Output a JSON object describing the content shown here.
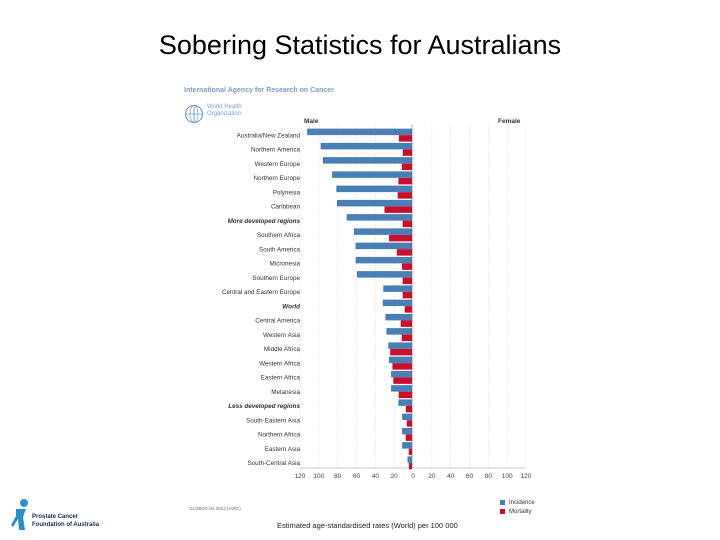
{
  "slide": {
    "title": "Sobering Statistics for Australians"
  },
  "header": {
    "agency": "International Agency for Research on Cancer",
    "who_line1": "World Health",
    "who_line2": "Organization"
  },
  "chart_data": {
    "type": "bar",
    "orientation": "horizontal-mirrored",
    "left_panel_label": "Male",
    "right_panel_label": "Female",
    "categories": [
      "Australia/New Zealand",
      "Northern America",
      "Western Europe",
      "Northern Europe",
      "Polynesia",
      "Caribbean",
      "More developed regions",
      "Southern Africa",
      "South America",
      "Micronesia",
      "Southern Europe",
      "Central and Eastern Europe",
      "World",
      "Central America",
      "Western Asia",
      "Middle Africa",
      "Western Africa",
      "Eastern Africa",
      "Melanesia",
      "Less developed regions",
      "South-Eastern Asia",
      "Northern Africa",
      "Eastern Asia",
      "South-Central Asia"
    ],
    "bold_categories": [
      "More developed regions",
      "World",
      "Less developed regions"
    ],
    "series": [
      {
        "name": "Incidence",
        "color": "#4a7fb5",
        "values": [
          111.6,
          97.2,
          94.9,
          85.0,
          80.5,
          79.8,
          69.5,
          61.8,
          60.1,
          60.0,
          58.6,
          30.6,
          31.1,
          28.3,
          27.2,
          25.2,
          24.5,
          22.3,
          22.3,
          14.5,
          10.5,
          10.6,
          10.5,
          4.8
        ]
      },
      {
        "name": "Mortality",
        "color": "#c8102e",
        "values": [
          14.0,
          9.8,
          10.8,
          14.5,
          15.3,
          29.3,
          10.0,
          24.4,
          16.2,
          10.6,
          10.0,
          10.0,
          7.8,
          12.0,
          11.0,
          23.2,
          20.9,
          19.9,
          14.2,
          6.6,
          5.6,
          6.7,
          3.5,
          3.3
        ]
      }
    ],
    "x_ticks": [
      "120",
      "100",
      "80",
      "60",
      "40",
      "20",
      "0",
      "20",
      "40",
      "60",
      "80",
      "100",
      "120"
    ],
    "x_range_left": [
      0,
      120
    ],
    "x_range_right": [
      0,
      120
    ],
    "xlabel": "Estimated age-standardised rates (World) per 100 000",
    "source": "GLOBOCAN 2012 (IARC)"
  },
  "footer": {
    "org_line1": "Prostate Cancer",
    "org_line2": "Foundation of Australia"
  }
}
